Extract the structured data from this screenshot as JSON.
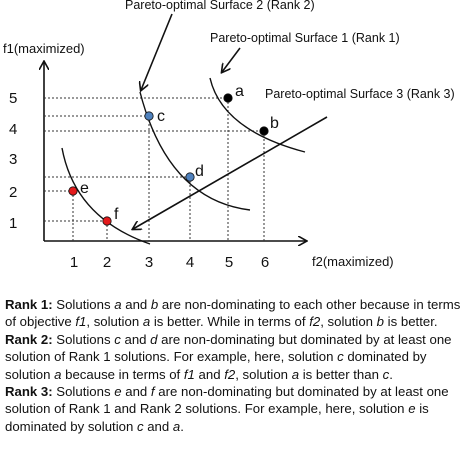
{
  "chart_data": {
    "type": "scatter",
    "xlabel": "f2(maximized)",
    "ylabel": "f1(maximized)",
    "x_ticks": [
      "1",
      "2",
      "3",
      "4",
      "5",
      "6"
    ],
    "y_ticks": [
      "1",
      "2",
      "3",
      "4",
      "5"
    ],
    "points": [
      {
        "label": "a",
        "x": 5,
        "y": 5,
        "color": "#000000"
      },
      {
        "label": "b",
        "x": 6,
        "y": 4,
        "color": "#000000"
      },
      {
        "label": "c",
        "x": 3,
        "y": 4.5,
        "color": "#4f81bd"
      },
      {
        "label": "d",
        "x": 4,
        "y": 2.5,
        "color": "#4f81bd"
      },
      {
        "label": "e",
        "x": 1,
        "y": 2,
        "color": "#e31a1c"
      },
      {
        "label": "f",
        "x": 2,
        "y": 1,
        "color": "#e31a1c"
      }
    ],
    "annotations": [
      "Pareto-optimal Surface 2 (Rank 2)",
      "Pareto-optimal Surface 1 (Rank 1)",
      "Pareto-optimal Surface 3 (Rank 3)"
    ]
  },
  "explanation": {
    "rank1": {
      "title": "Rank 1:",
      "t1": " Solutions ",
      "a": "a",
      "t2": " and ",
      "b": "b",
      "t3": " are non-dominating to each other because in terms of objective ",
      "f1": "f1",
      "t4": ", solution ",
      "a2": "a",
      "t5": " is better. While in terms of ",
      "f2": "f2",
      "t6": ", solution ",
      "b2": "b",
      "t7": " is better."
    },
    "rank2": {
      "title": "Rank 2:",
      "t1": " Solutions ",
      "c": "c",
      "t2": " and ",
      "d": "d",
      "t3": " are non-dominating but dominated by at least one solution of Rank 1 solutions. For example, here, solution ",
      "c2": "c",
      "t4": " dominated by solution ",
      "a": "a",
      "t5": " because in terms of ",
      "f1": "f1",
      "t6": " and ",
      "f2": "f2",
      "t7": ", solution ",
      "a2": "a",
      "t8": " is better than ",
      "c3": "c",
      "t9": "."
    },
    "rank3": {
      "title": "Rank 3:",
      "t1": " Solutions ",
      "e": "e",
      "t2": " and ",
      "f": "f",
      "t3": " are non-dominating but dominated by at least one solution of Rank 1 and Rank 2 solutions. For example, here, solution ",
      "e2": "e",
      "t4": " is dominated by solution ",
      "c": "c",
      "t5": " and ",
      "a": "a",
      "t6": "."
    }
  }
}
